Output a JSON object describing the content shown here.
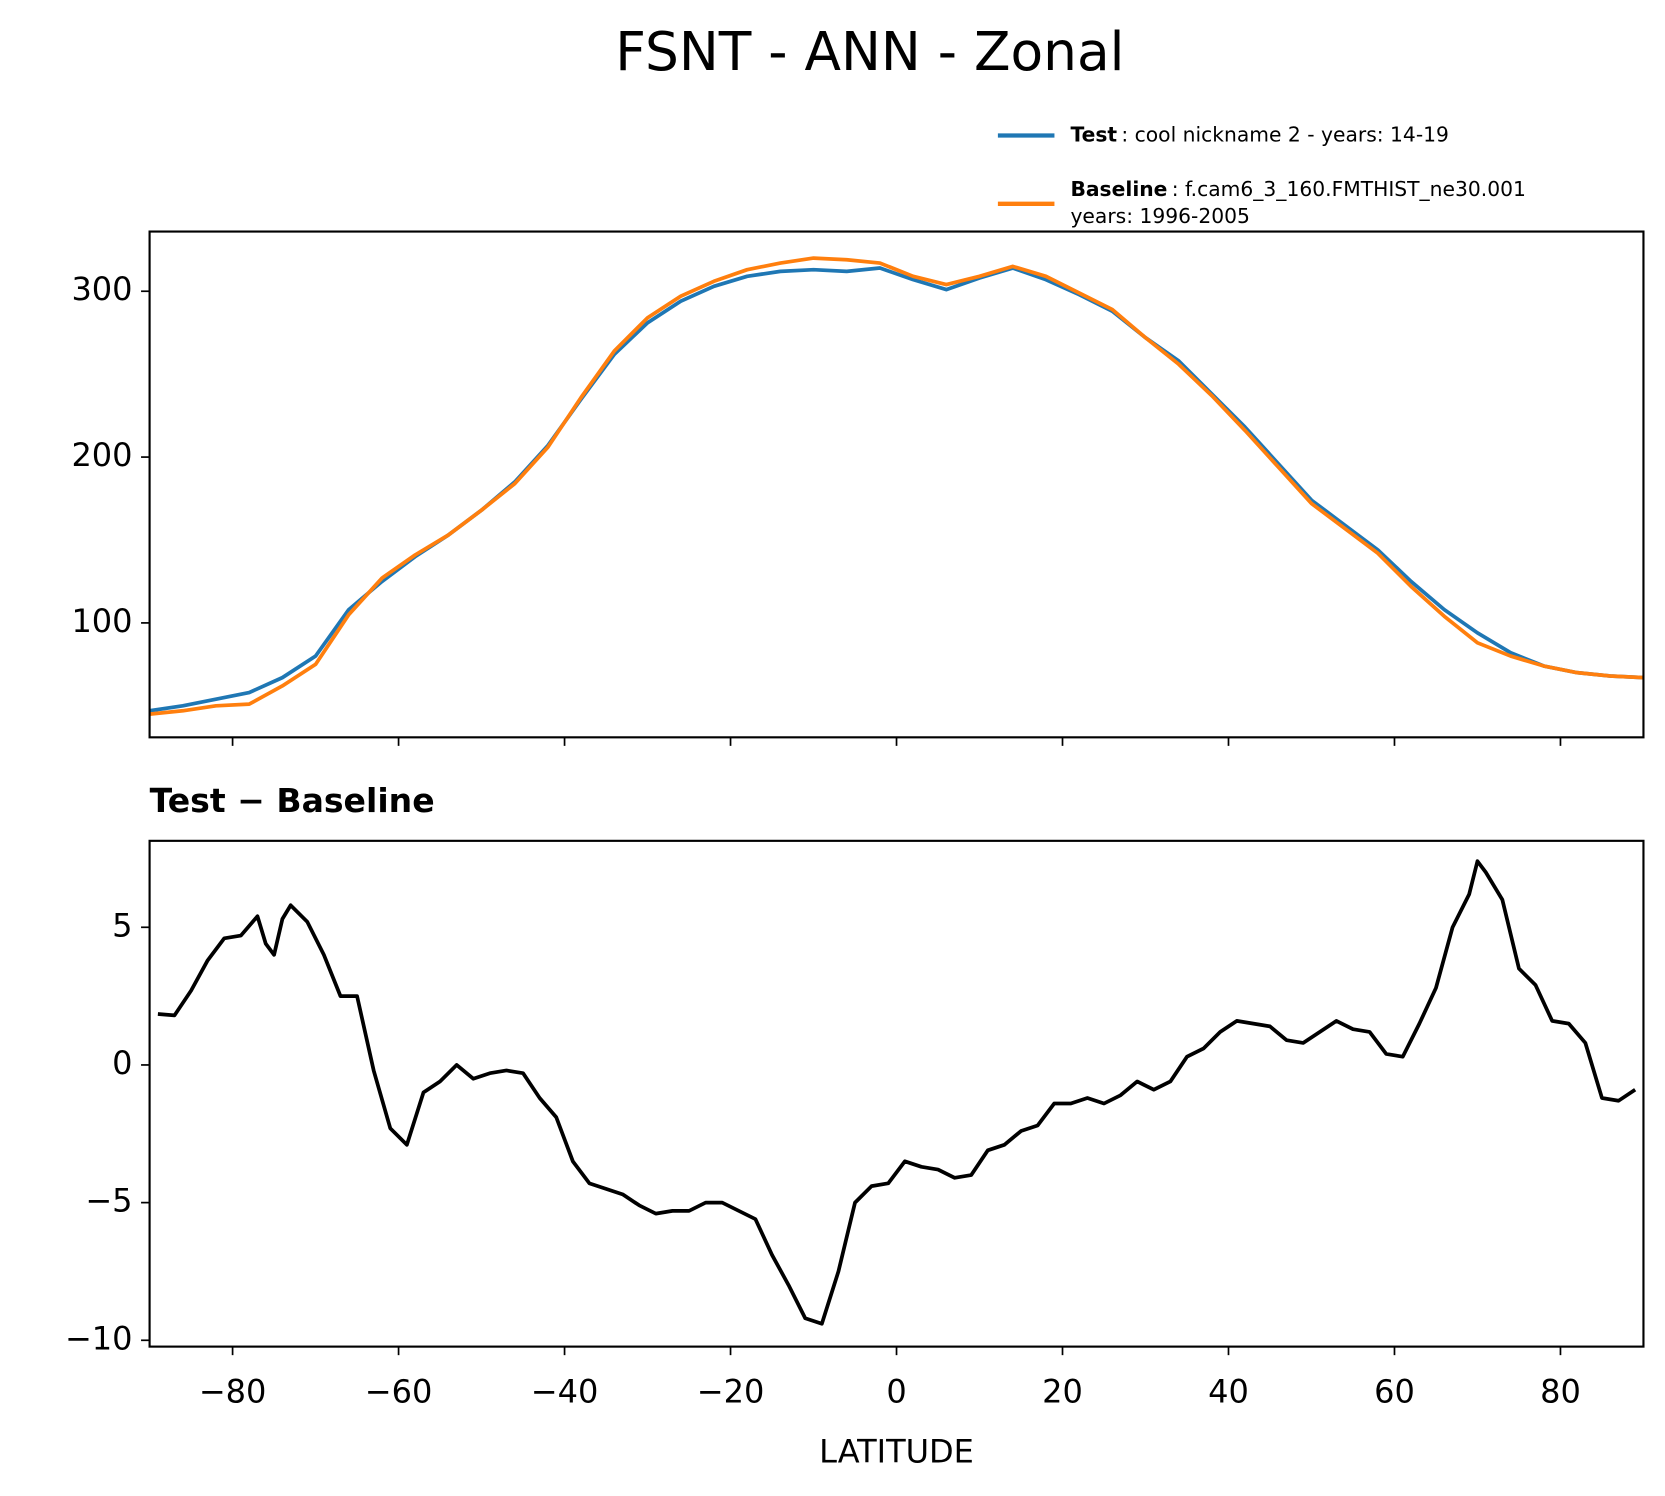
{
  "title": "FSNT - ANN - Zonal",
  "chart_data": [
    {
      "type": "line",
      "series": [
        {
          "name": "Test",
          "description": [
            ": cool nickname 2 - years: 14-19"
          ],
          "color": "#1f77b4",
          "values": [
            47,
            50,
            54,
            58,
            67,
            80,
            108,
            125,
            140,
            153,
            168,
            185,
            207,
            235,
            262,
            281,
            294,
            303,
            309,
            312,
            313,
            312,
            314,
            307,
            301,
            308,
            314,
            307,
            298,
            288,
            272,
            258,
            238,
            218,
            196,
            174,
            159,
            144,
            125,
            108,
            94,
            82,
            74,
            70,
            68,
            67
          ]
        },
        {
          "name": "Baseline",
          "description": [
            ": f.cam6_3_160.FMTHIST_ne30.001",
            "years: 1996-2005"
          ],
          "color": "#ff7f0e",
          "values": [
            45,
            47,
            50,
            51,
            62,
            75,
            105,
            127,
            141,
            153,
            168,
            184,
            206,
            236,
            264,
            284,
            297,
            306,
            313,
            317,
            320,
            319,
            317,
            309,
            304,
            309,
            315,
            309,
            299,
            289,
            272,
            256,
            237,
            216,
            194,
            172,
            157,
            142,
            122,
            104,
            88,
            80,
            74,
            70,
            68,
            67
          ]
        }
      ],
      "x": [
        -90,
        -86,
        -82,
        -78,
        -74,
        -70,
        -66,
        -62,
        -58,
        -54,
        -50,
        -46,
        -42,
        -38,
        -34,
        -30,
        -26,
        -22,
        -18,
        -14,
        -10,
        -6,
        -2,
        2,
        6,
        10,
        14,
        18,
        22,
        26,
        30,
        34,
        38,
        42,
        46,
        50,
        54,
        58,
        62,
        66,
        70,
        74,
        78,
        82,
        86,
        90
      ],
      "xlim": [
        -90,
        90
      ],
      "xticks": [
        -80,
        -60,
        -40,
        -20,
        0,
        20,
        40,
        60,
        80
      ],
      "ylim": [
        31,
        336
      ],
      "yticks": [
        100,
        200,
        300
      ]
    },
    {
      "type": "line",
      "title": "Test − Baseline",
      "xlabel": "LATITUDE",
      "series": [
        {
          "color": "#000000",
          "values": [
            1.85,
            1.8,
            2.7,
            3.8,
            4.6,
            4.7,
            5.4,
            4.4,
            4.0,
            5.3,
            5.8,
            5.2,
            4.0,
            2.5,
            2.5,
            -0.2,
            -2.3,
            -2.9,
            -1.0,
            -0.6,
            0.0,
            -0.5,
            -0.3,
            -0.2,
            -0.3,
            -1.2,
            -1.9,
            -3.5,
            -4.3,
            -4.5,
            -4.7,
            -5.1,
            -5.4,
            -5.3,
            -5.3,
            -5.0,
            -5.0,
            -5.3,
            -5.6,
            -6.9,
            -8.0,
            -9.2,
            -9.4,
            -7.5,
            -5.0,
            -4.4,
            -4.3,
            -3.5,
            -3.7,
            -3.8,
            -4.1,
            -4.0,
            -3.1,
            -2.9,
            -2.4,
            -2.2,
            -1.4,
            -1.4,
            -1.2,
            -1.4,
            -1.1,
            -0.6,
            -0.9,
            -0.6,
            0.3,
            0.6,
            1.2,
            1.6,
            1.5,
            1.4,
            0.9,
            0.8,
            1.2,
            1.6,
            1.3,
            1.2,
            0.4,
            0.3,
            1.5,
            2.8,
            5.0,
            6.2,
            7.4,
            7.0,
            6.0,
            3.5,
            2.9,
            1.6,
            1.5,
            0.8,
            -1.2,
            -1.3,
            -0.9
          ]
        }
      ],
      "x": [
        -89,
        -87,
        -85,
        -83,
        -81,
        -79,
        -77,
        -76,
        -75,
        -74,
        -73,
        -71,
        -69,
        -67,
        -65,
        -63,
        -61,
        -59,
        -57,
        -55,
        -53,
        -51,
        -49,
        -47,
        -45,
        -43,
        -41,
        -39,
        -37,
        -35,
        -33,
        -31,
        -29,
        -27,
        -25,
        -23,
        -21,
        -19,
        -17,
        -15,
        -13,
        -11,
        -9,
        -7,
        -5,
        -3,
        -1,
        1,
        3,
        5,
        7,
        9,
        11,
        13,
        15,
        17,
        19,
        21,
        23,
        25,
        27,
        29,
        31,
        33,
        35,
        37,
        39,
        41,
        43,
        45,
        47,
        49,
        51,
        53,
        55,
        57,
        59,
        61,
        63,
        65,
        67,
        69,
        70,
        71,
        73,
        75,
        77,
        79,
        81,
        83,
        85,
        87,
        89
      ],
      "xlim": [
        -90,
        90
      ],
      "xticks": [
        {
          "value": -80,
          "label": "−80"
        },
        {
          "value": -60,
          "label": "−60"
        },
        {
          "value": -40,
          "label": "−40"
        },
        {
          "value": -20,
          "label": "−20"
        },
        0,
        20,
        40,
        60,
        80
      ],
      "ylim": [
        -10.23,
        8.14
      ],
      "yticks": [
        {
          "value": -10,
          "label": "−10"
        },
        {
          "value": -5,
          "label": "−5"
        },
        0,
        5
      ]
    }
  ]
}
